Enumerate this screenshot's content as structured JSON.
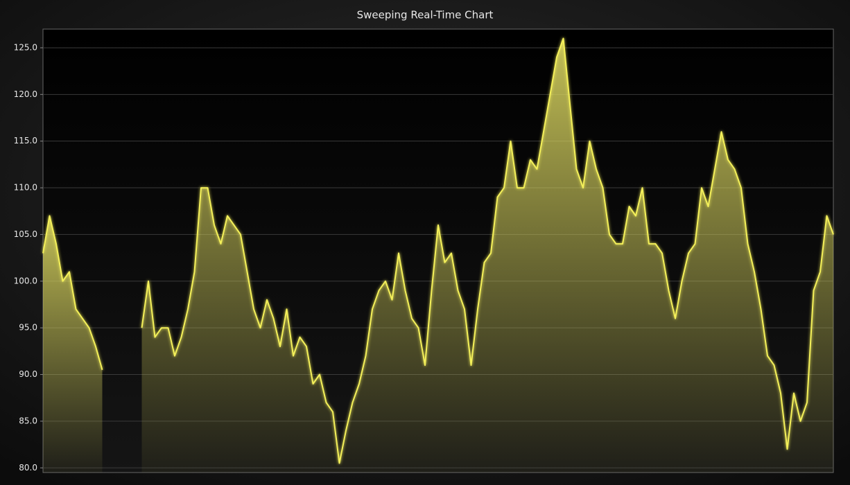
{
  "chart_data": {
    "type": "area",
    "title": "Sweeping Real-Time Chart",
    "values": [
      103,
      107,
      104,
      100,
      101,
      97,
      96,
      95,
      93,
      90.5,
      null,
      null,
      null,
      null,
      null,
      95,
      100,
      94,
      95,
      95,
      92,
      94,
      97,
      101,
      110,
      110,
      106,
      104,
      107,
      106,
      105,
      101,
      97,
      95,
      98,
      96,
      93,
      97,
      92,
      94,
      93,
      89,
      90,
      87,
      86,
      80.5,
      84,
      87,
      89,
      92,
      97,
      99,
      100,
      98,
      103,
      99,
      96,
      95,
      91,
      99,
      106,
      102,
      103,
      99,
      97,
      91,
      97,
      102,
      103,
      109,
      110,
      115,
      110,
      110,
      113,
      112,
      116,
      120,
      124,
      126,
      119,
      112,
      110,
      115,
      112,
      110,
      105,
      104,
      104,
      108,
      107,
      110,
      104,
      104,
      103,
      99,
      96,
      100,
      103,
      104,
      110,
      108,
      112,
      116,
      113,
      112,
      110,
      104,
      101,
      97,
      92,
      91,
      88,
      82,
      88,
      85,
      87,
      99,
      101,
      107,
      105
    ],
    "color": "#f4f05a",
    "ylim": [
      79.5,
      127
    ],
    "yticks": [
      {
        "value": 80,
        "label": "80.0"
      },
      {
        "value": 85,
        "label": "85.0"
      },
      {
        "value": 90,
        "label": "90.0"
      },
      {
        "value": 95,
        "label": "95.0"
      },
      {
        "value": 100,
        "label": "100.0"
      },
      {
        "value": 105,
        "label": "105.0"
      },
      {
        "value": 110,
        "label": "110.0"
      },
      {
        "value": 115,
        "label": "115.0"
      },
      {
        "value": 120,
        "label": "120.0"
      },
      {
        "value": 125,
        "label": "125.0"
      }
    ],
    "grid": true
  }
}
